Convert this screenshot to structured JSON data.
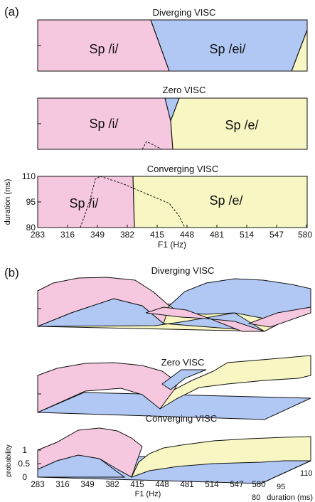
{
  "colors": {
    "sp_i": "#f6c8df",
    "sp_ei": "#b1c8f5",
    "sp_e": "#f8f7c3",
    "stroke": "#111111"
  },
  "panel_a": {
    "label": "(a)",
    "titles": [
      "Diverging VISC",
      "Zero VISC",
      "Converging VISC"
    ],
    "x_ticks": [
      "283",
      "316",
      "349",
      "382",
      "415",
      "448",
      "481",
      "514",
      "547",
      "580"
    ],
    "y_ticks": [
      "110",
      "95",
      "80"
    ],
    "xlabel": "F1 (Hz)",
    "ylabel": "duration (ms)",
    "regions": {
      "diverging": [
        "Sp /i/",
        "Sp /ei/"
      ],
      "zero": [
        "Sp /i/",
        "Sp /e/"
      ],
      "converging": [
        "Sp /i/",
        "Sp /e/"
      ]
    }
  },
  "panel_b": {
    "label": "(b)",
    "titles": [
      "Diverging VISC",
      "Zero VISC",
      "Converging VISC"
    ],
    "x_ticks": [
      "283",
      "316",
      "349",
      "382",
      "415",
      "448",
      "481",
      "514",
      "547",
      "580"
    ],
    "xlabel": "F1 (Hz)",
    "z_ticks": [
      "1",
      "0.5",
      "0"
    ],
    "zlabel": "probability",
    "depth_ticks": [
      "110",
      "95",
      "80"
    ],
    "depth_label": "duration (ms)"
  },
  "chart_data": [
    {
      "type": "heatmap",
      "title": "Diverging VISC",
      "xlabel": "F1 (Hz)",
      "ylabel": "duration (ms)",
      "xlim": [
        283,
        580
      ],
      "ylim": [
        80,
        110
      ],
      "regions": [
        {
          "label": "Sp /i/",
          "boundary_F1_at_110": 415,
          "boundary_F1_at_80": 445
        },
        {
          "label": "Sp /ei/",
          "boundary_F1_at_110": 580,
          "boundary_F1_at_80": 563
        }
      ]
    },
    {
      "type": "heatmap",
      "title": "Zero VISC",
      "xlabel": "F1 (Hz)",
      "ylabel": "duration (ms)",
      "xlim": [
        283,
        580
      ],
      "ylim": [
        80,
        110
      ],
      "regions": [
        {
          "label": "Sp /i/",
          "boundary_F1_at_110": 432,
          "boundary_F1_at_80": 439
        },
        {
          "label": "Sp /e/",
          "boundary_F1_at_110": 580,
          "boundary_F1_at_80": 580
        }
      ]
    },
    {
      "type": "heatmap",
      "title": "Converging VISC",
      "xlabel": "F1 (Hz)",
      "ylabel": "duration (ms)",
      "xlim": [
        283,
        580
      ],
      "ylim": [
        80,
        110
      ],
      "y_ticks": [
        80,
        95,
        110
      ],
      "regions": [
        {
          "label": "Sp /i/",
          "boundary_F1_at_110": 386,
          "boundary_F1_at_80": 388
        },
        {
          "label": "Sp /e/",
          "boundary_F1_at_110": 580,
          "boundary_F1_at_80": 580
        }
      ]
    },
    {
      "type": "area",
      "title": "Diverging VISC",
      "xlabel": "F1 (Hz)",
      "series": [
        {
          "name": "Sp /i/",
          "x": [
            283,
            349,
            415,
            448
          ],
          "y": [
            1,
            1,
            0.5,
            0
          ]
        },
        {
          "name": "Sp /ei/",
          "x": [
            415,
            448,
            514,
            580
          ],
          "y": [
            0,
            0.5,
            1,
            1
          ]
        }
      ]
    },
    {
      "type": "area",
      "title": "Zero VISC",
      "xlabel": "F1 (Hz)",
      "series": [
        {
          "name": "Sp /i/",
          "x": [
            283,
            382,
            430,
            448
          ],
          "y": [
            1,
            1,
            0.4,
            0
          ]
        },
        {
          "name": "Sp /e/",
          "x": [
            430,
            448,
            514,
            580
          ],
          "y": [
            0,
            0.8,
            1,
            1
          ]
        }
      ]
    },
    {
      "type": "area",
      "title": "Converging VISC",
      "xlabel": "F1 (Hz)",
      "z_ticks": [
        0,
        0.5,
        1
      ],
      "series": [
        {
          "name": "Sp /i/",
          "x": [
            283,
            349,
            382,
            415
          ],
          "y": [
            1,
            1,
            0.5,
            0
          ]
        },
        {
          "name": "Sp /e/",
          "x": [
            382,
            415,
            481,
            580
          ],
          "y": [
            0,
            0.6,
            1,
            1
          ]
        }
      ]
    }
  ]
}
